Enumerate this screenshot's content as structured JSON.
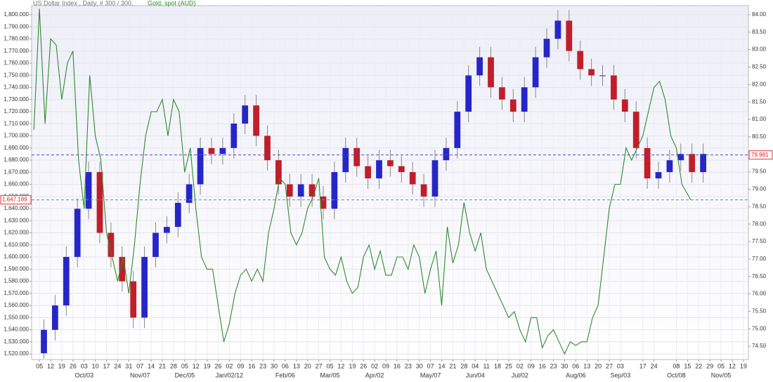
{
  "chart_data": {
    "type": "candlestick",
    "candles": {
      "name": "US Dollar Index , Daily, # 300 / 300,",
      "axis": "y2",
      "up_color": "#2626c8",
      "down_color": "#c01e2a",
      "x": [
        0.4,
        1.4,
        2.4,
        3.4,
        4.4,
        5.4,
        6.4,
        7.4,
        8.4,
        9.4,
        10.4,
        11.4,
        12.4,
        13.4,
        14.4,
        15.4,
        16.4,
        17.4,
        18.4,
        19.4,
        20.4,
        21.4,
        22.4,
        23.4,
        24.4,
        25.4,
        26.4,
        27.4,
        28.4,
        29.4,
        30.4,
        31.4,
        32.4,
        33.4,
        34.4,
        35.4,
        36.4,
        37.4,
        38.4,
        39.4,
        40.4,
        41.4,
        42.4,
        43.4,
        44.4,
        45.4,
        46.4,
        47.4,
        48.4,
        49.4,
        50.4,
        51.4,
        52.4,
        53.4,
        54.4,
        55.4,
        56.4,
        57.4,
        58.4,
        59.4
      ],
      "open": [
        74.3,
        74.97,
        75.67,
        77.06,
        78.44,
        79.49,
        77.75,
        77.06,
        76.36,
        75.32,
        77.06,
        77.75,
        77.92,
        78.61,
        79.14,
        80.18,
        80.01,
        80.18,
        80.88,
        81.4,
        80.53,
        79.83,
        79.14,
        78.79,
        79.14,
        78.79,
        78.44,
        79.49,
        80.18,
        79.66,
        79.31,
        79.83,
        79.66,
        79.49,
        79.14,
        78.79,
        79.83,
        80.18,
        81.22,
        82.26,
        82.78,
        81.92,
        81.57,
        81.22,
        81.92,
        82.78,
        83.31,
        83.83,
        82.96,
        82.44,
        82.26,
        82.26,
        81.57,
        81.22,
        80.18,
        79.31,
        79.49,
        79.83,
        80.01,
        79.49
      ],
      "high": [
        75.27,
        75.97,
        77.36,
        78.74,
        79.79,
        79.79,
        78.05,
        77.36,
        76.66,
        77.36,
        78.05,
        78.22,
        78.91,
        79.44,
        80.48,
        80.48,
        80.48,
        81.18,
        81.7,
        81.7,
        80.83,
        80.13,
        79.44,
        79.44,
        79.44,
        79.09,
        79.79,
        80.48,
        80.48,
        79.96,
        80.13,
        80.13,
        79.96,
        79.79,
        79.44,
        80.13,
        80.48,
        81.52,
        82.56,
        83.08,
        83.08,
        82.22,
        81.87,
        82.22,
        83.08,
        83.61,
        84.13,
        84.13,
        83.26,
        82.74,
        82.56,
        82.56,
        81.87,
        81.52,
        80.48,
        79.79,
        80.13,
        80.31,
        80.31,
        80.31
      ],
      "low": [
        74.15,
        74.67,
        75.37,
        76.76,
        78.14,
        77.45,
        76.76,
        76.06,
        75.02,
        75.02,
        76.76,
        77.45,
        77.62,
        78.31,
        78.84,
        79.71,
        79.71,
        79.88,
        80.58,
        80.23,
        79.53,
        78.84,
        78.49,
        78.49,
        78.49,
        78.14,
        78.14,
        79.19,
        79.36,
        79.01,
        79.01,
        79.36,
        79.19,
        78.84,
        78.49,
        78.49,
        79.53,
        79.88,
        80.92,
        81.96,
        81.62,
        81.27,
        80.92,
        80.92,
        81.62,
        82.48,
        83.01,
        82.66,
        82.14,
        81.96,
        81.96,
        81.27,
        80.92,
        79.88,
        79.01,
        79.01,
        79.19,
        79.53,
        79.19,
        79.19
      ],
      "close": [
        74.97,
        75.67,
        77.06,
        78.44,
        79.49,
        77.75,
        77.06,
        76.36,
        75.32,
        77.06,
        77.75,
        77.92,
        78.61,
        79.14,
        80.18,
        80.01,
        80.18,
        80.88,
        81.4,
        80.53,
        79.83,
        79.14,
        78.79,
        79.14,
        78.79,
        78.44,
        79.49,
        80.18,
        79.66,
        79.31,
        79.83,
        79.66,
        79.49,
        79.14,
        78.79,
        79.83,
        80.18,
        81.22,
        82.26,
        82.78,
        81.92,
        81.57,
        81.22,
        81.92,
        82.78,
        83.31,
        83.83,
        82.96,
        82.44,
        82.26,
        82.26,
        81.57,
        81.22,
        80.18,
        79.31,
        79.49,
        79.83,
        80.01,
        79.49,
        80.01
      ]
    },
    "overlay": {
      "type": "line",
      "name": "Gold, spot (AUD)",
      "color": "#2e8b2e",
      "x": [
        -0.5,
        0,
        0.5,
        1,
        1.5,
        2,
        2.5,
        3,
        3.5,
        4,
        4.5,
        5,
        5.5,
        6,
        6.5,
        7,
        7.5,
        8,
        8.5,
        9,
        9.5,
        10,
        10.5,
        11,
        11.5,
        12,
        12.5,
        13,
        13.5,
        14,
        14.5,
        15,
        15.5,
        16,
        16.5,
        17,
        17.5,
        18,
        18.5,
        19,
        19.5,
        20,
        20.5,
        21,
        21.5,
        22,
        22.5,
        23,
        23.5,
        24,
        24.5,
        25,
        25.5,
        26,
        26.5,
        27,
        27.5,
        28,
        28.5,
        29,
        29.5,
        30,
        30.5,
        31,
        31.5,
        32,
        32.5,
        33,
        33.5,
        34,
        34.5,
        35,
        35.5,
        36,
        36.5,
        37,
        37.5,
        38,
        38.5,
        39,
        39.5,
        40,
        40.5,
        41,
        41.5,
        42,
        42.5,
        43,
        43.5,
        44,
        44.5,
        45,
        45.5,
        46,
        46.5,
        47,
        47.5,
        48,
        48.5,
        49,
        49.5,
        50,
        50.5,
        51,
        51.5,
        52,
        52.5,
        53,
        53.5,
        54,
        54.5,
        55,
        55.5,
        56,
        56.5,
        57,
        57.5,
        58.3
      ],
      "values": [
        1705,
        1805,
        1710,
        1780,
        1775,
        1730,
        1760,
        1770,
        1680,
        1640,
        1750,
        1700,
        1680,
        1620,
        1600,
        1580,
        1600,
        1570,
        1610,
        1660,
        1700,
        1720,
        1720,
        1730,
        1700,
        1730,
        1720,
        1670,
        1690,
        1640,
        1600,
        1590,
        1590,
        1560,
        1530,
        1545,
        1570,
        1585,
        1590,
        1580,
        1590,
        1580,
        1620,
        1640,
        1665,
        1660,
        1620,
        1610,
        1620,
        1640,
        1650,
        1665,
        1600,
        1590,
        1585,
        1600,
        1580,
        1570,
        1575,
        1600,
        1610,
        1590,
        1605,
        1585,
        1585,
        1600,
        1600,
        1590,
        1610,
        1600,
        1570,
        1590,
        1605,
        1560,
        1625,
        1595,
        1610,
        1645,
        1620,
        1605,
        1620,
        1590,
        1580,
        1570,
        1560,
        1550,
        1555,
        1540,
        1530,
        1550,
        1550,
        1525,
        1535,
        1540,
        1530,
        1520,
        1530,
        1527,
        1530,
        1530,
        1550,
        1560,
        1600,
        1640,
        1660,
        1660,
        1690,
        1680,
        1690,
        1700,
        1720,
        1740,
        1745,
        1730,
        1700,
        1690,
        1660,
        1647.189
      ]
    },
    "price_lines": [
      {
        "value": 79.981,
        "axis": "y2",
        "color": "#4a4ad0"
      },
      {
        "value": 1647.189,
        "label": "1,647.189",
        "axis": "y",
        "color": "#4a9ac8"
      }
    ],
    "xlim": [
      -0.7,
      63.45
    ],
    "xticks": [
      {
        "value": 0,
        "label": "05"
      },
      {
        "value": 1,
        "label": "12"
      },
      {
        "value": 2,
        "label": "19"
      },
      {
        "value": 3,
        "label": "26"
      },
      {
        "value": 4,
        "label": "03"
      },
      {
        "value": 5,
        "label": "10"
      },
      {
        "value": 6,
        "label": "17"
      },
      {
        "value": 7,
        "label": "24"
      },
      {
        "value": 8,
        "label": "31"
      },
      {
        "value": 9,
        "label": "07"
      },
      {
        "value": 10,
        "label": "14"
      },
      {
        "value": 11,
        "label": "21"
      },
      {
        "value": 12,
        "label": "28"
      },
      {
        "value": 13,
        "label": "05"
      },
      {
        "value": 14,
        "label": "12"
      },
      {
        "value": 15,
        "label": "19"
      },
      {
        "value": 16,
        "label": "26"
      },
      {
        "value": 17,
        "label": "02"
      },
      {
        "value": 18,
        "label": "09"
      },
      {
        "value": 19,
        "label": "16"
      },
      {
        "value": 20,
        "label": "23"
      },
      {
        "value": 21,
        "label": "30"
      },
      {
        "value": 22,
        "label": "06"
      },
      {
        "value": 23,
        "label": "13"
      },
      {
        "value": 24,
        "label": "20"
      },
      {
        "value": 25,
        "label": "27"
      },
      {
        "value": 26,
        "label": "05"
      },
      {
        "value": 27,
        "label": "12"
      },
      {
        "value": 28,
        "label": "19"
      },
      {
        "value": 29,
        "label": "26"
      },
      {
        "value": 30,
        "label": "02"
      },
      {
        "value": 31,
        "label": "09"
      },
      {
        "value": 32,
        "label": "16"
      },
      {
        "value": 33,
        "label": "23"
      },
      {
        "value": 34,
        "label": "30"
      },
      {
        "value": 35,
        "label": "07"
      },
      {
        "value": 36,
        "label": "14"
      },
      {
        "value": 37,
        "label": "21"
      },
      {
        "value": 38,
        "label": "28"
      },
      {
        "value": 39,
        "label": "04"
      },
      {
        "value": 40,
        "label": "11"
      },
      {
        "value": 41,
        "label": "18"
      },
      {
        "value": 42,
        "label": "25"
      },
      {
        "value": 43,
        "label": "02"
      },
      {
        "value": 44,
        "label": "09"
      },
      {
        "value": 45,
        "label": "16"
      },
      {
        "value": 46,
        "label": "23"
      },
      {
        "value": 47,
        "label": "30"
      },
      {
        "value": 48,
        "label": "06"
      },
      {
        "value": 49,
        "label": "13"
      },
      {
        "value": 50,
        "label": "20"
      },
      {
        "value": 51,
        "label": "27"
      },
      {
        "value": 52,
        "label": "03"
      },
      {
        "value": 54,
        "label": "17"
      },
      {
        "value": 55,
        "label": "24"
      },
      {
        "value": 57,
        "label": "08"
      },
      {
        "value": 58,
        "label": "15"
      },
      {
        "value": 59,
        "label": "22"
      },
      {
        "value": 60,
        "label": "29"
      },
      {
        "value": 61,
        "label": "05"
      },
      {
        "value": 62,
        "label": "12"
      },
      {
        "value": 63,
        "label": "19"
      }
    ],
    "month_ticks": [
      {
        "value": 4,
        "label": "Oct/03"
      },
      {
        "value": 9,
        "label": "Nov/07"
      },
      {
        "value": 13,
        "label": "Dec/05"
      },
      {
        "value": 17,
        "label": "Jan/02/12"
      },
      {
        "value": 22,
        "label": "Feb/06"
      },
      {
        "value": 26,
        "label": "Mar/05"
      },
      {
        "value": 30,
        "label": "Apr/02"
      },
      {
        "value": 35,
        "label": "May/07"
      },
      {
        "value": 39,
        "label": "Jun/04"
      },
      {
        "value": 43,
        "label": "Jul/02"
      },
      {
        "value": 48,
        "label": "Aug/06"
      },
      {
        "value": 52,
        "label": "Sep/03"
      },
      {
        "value": 57,
        "label": "Oct/08"
      },
      {
        "value": 61,
        "label": "Nov/05"
      }
    ],
    "ylim": [
      1515.4,
      1807.5
    ],
    "yticks": [
      {
        "value": 1520,
        "label": "1,520.000"
      },
      {
        "value": 1530,
        "label": "1,530.000"
      },
      {
        "value": 1540,
        "label": "1,540.000"
      },
      {
        "value": 1550,
        "label": "1,550.000"
      },
      {
        "value": 1560,
        "label": "1,560.000"
      },
      {
        "value": 1570,
        "label": "1,570.000"
      },
      {
        "value": 1580,
        "label": "1,580.000"
      },
      {
        "value": 1590,
        "label": "1,590.000"
      },
      {
        "value": 1600,
        "label": "1,600.000"
      },
      {
        "value": 1610,
        "label": "1,610.000"
      },
      {
        "value": 1620,
        "label": "1,620.000"
      },
      {
        "value": 1630,
        "label": "1,630.000"
      },
      {
        "value": 1640,
        "label": "1,640.000"
      },
      {
        "value": 1650,
        "label": "1,650.000"
      },
      {
        "value": 1660,
        "label": "1,660.000"
      },
      {
        "value": 1670,
        "label": "1,670.000"
      },
      {
        "value": 1680,
        "label": "1,680.000"
      },
      {
        "value": 1690,
        "label": "1,690.000"
      },
      {
        "value": 1700,
        "label": "1,700.000"
      },
      {
        "value": 1710,
        "label": "1,710.000"
      },
      {
        "value": 1720,
        "label": "1,720.000"
      },
      {
        "value": 1730,
        "label": "1,730.000"
      },
      {
        "value": 1740,
        "label": "1,740.000"
      },
      {
        "value": 1750,
        "label": "1,750.000"
      },
      {
        "value": 1760,
        "label": "1,760.000"
      },
      {
        "value": 1770,
        "label": "1,770.000"
      },
      {
        "value": 1780,
        "label": "1,780.000"
      },
      {
        "value": 1790,
        "label": "1,790.000"
      },
      {
        "value": 1800,
        "label": "1,800.000"
      }
    ],
    "y2lim": [
      74.12,
      84.26
    ],
    "y2ticks": [
      {
        "value": 74.5,
        "label": "74.50"
      },
      {
        "value": 75,
        "label": "75.00"
      },
      {
        "value": 75.5,
        "label": "75.50"
      },
      {
        "value": 76,
        "label": "76.00"
      },
      {
        "value": 76.5,
        "label": "76.50"
      },
      {
        "value": 77,
        "label": "77.00"
      },
      {
        "value": 77.5,
        "label": "77.50"
      },
      {
        "value": 78,
        "label": "78.00"
      },
      {
        "value": 78.5,
        "label": "78.50"
      },
      {
        "value": 79,
        "label": "79.00"
      },
      {
        "value": 79.5,
        "label": "79.50"
      },
      {
        "value": 80,
        "label": "80.00"
      },
      {
        "value": 80.5,
        "label": "80.50"
      },
      {
        "value": 81,
        "label": "81.00"
      },
      {
        "value": 81.5,
        "label": "81.50"
      },
      {
        "value": 82,
        "label": "82.00"
      },
      {
        "value": 82.5,
        "label": "82.50"
      },
      {
        "value": 83,
        "label": "83.00"
      },
      {
        "value": 83.5,
        "label": "83.50"
      },
      {
        "value": 84,
        "label": "84.00"
      }
    ],
    "grid": true
  }
}
